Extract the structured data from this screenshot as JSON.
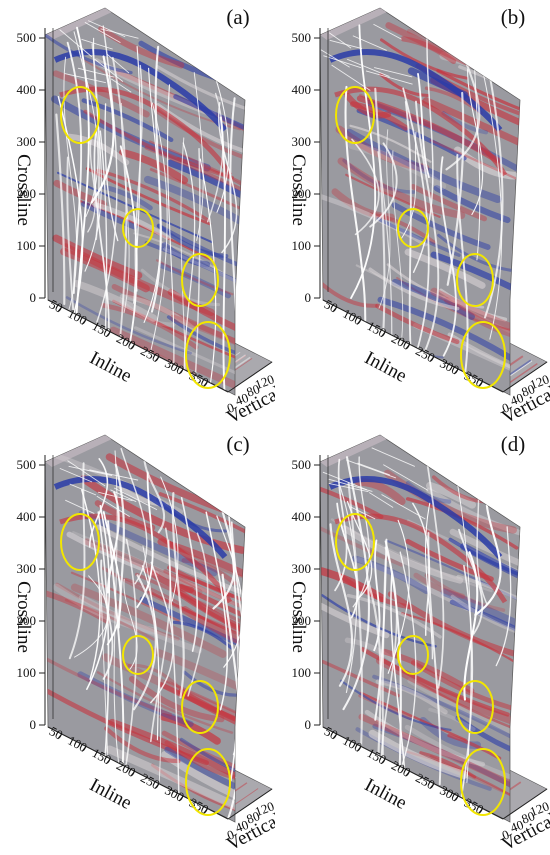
{
  "figure": {
    "axes": {
      "crossline_label": "Crossline",
      "inline_label": "Inline",
      "vertical_label": "Vertical",
      "crossline_ticks": [
        "0",
        "100",
        "200",
        "300",
        "400",
        "500"
      ],
      "inline_ticks": [
        "50",
        "100",
        "150",
        "200",
        "250",
        "300",
        "350"
      ],
      "vertical_ticks": [
        "0",
        "40",
        "80",
        "120"
      ]
    },
    "panels": [
      {
        "label": "(a)",
        "fault_density": "high"
      },
      {
        "label": "(b)",
        "fault_density": "low"
      },
      {
        "label": "(c)",
        "fault_density": "high"
      },
      {
        "label": "(d)",
        "fault_density": "medium"
      }
    ],
    "highlight_color": "#f2e600",
    "seismic_colors": {
      "positive": "#c8323c",
      "negative": "#2a3ca8",
      "neutral": "#9a9aa0"
    }
  }
}
